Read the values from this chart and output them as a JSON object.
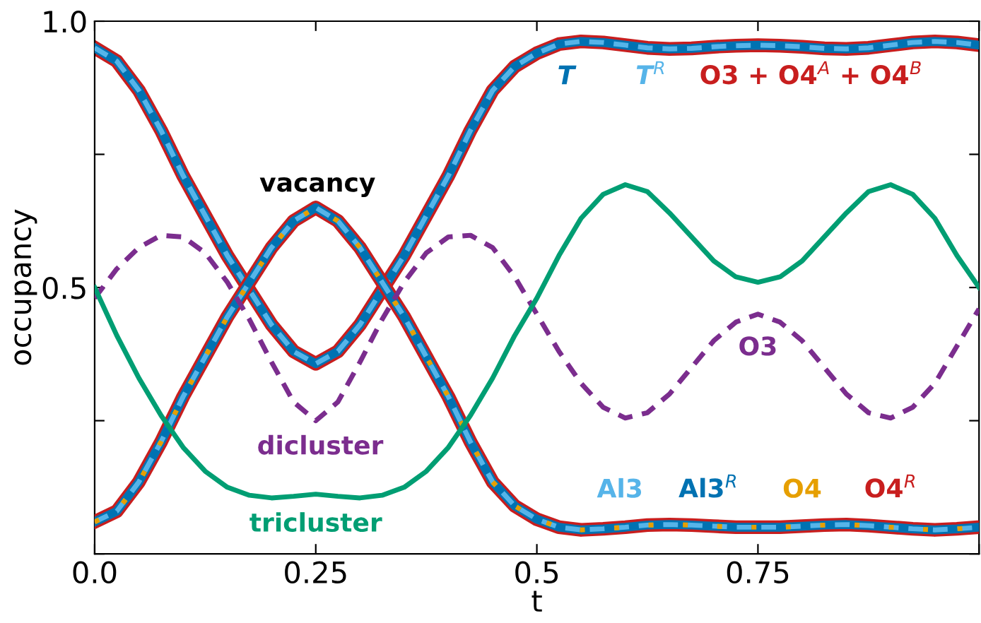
{
  "chart_data": {
    "type": "line",
    "xlabel": "t",
    "ylabel": "occupancy",
    "xlim": [
      0,
      1
    ],
    "ylim": [
      0,
      1
    ],
    "xticks": [
      {
        "value": 0,
        "label": "0.0"
      },
      0.25,
      0.5,
      0.75,
      {
        "value": 1,
        "label": null
      }
    ],
    "yticks": [
      {
        "value": 0,
        "label": null
      },
      {
        "value": 0.25,
        "label": null
      },
      0.5,
      {
        "value": 0.75,
        "label": null
      },
      {
        "value": 1,
        "label": "1.0"
      }
    ],
    "grid": false,
    "legend": false,
    "marker": "none",
    "x": [
      0,
      0.025,
      0.05,
      0.075,
      0.1,
      0.125,
      0.15,
      0.175,
      0.2,
      0.225,
      0.25,
      0.275,
      0.3,
      0.325,
      0.35,
      0.375,
      0.4,
      0.425,
      0.45,
      0.475,
      0.5,
      0.525,
      0.55,
      0.575,
      0.6,
      0.625,
      0.65,
      0.675,
      0.7,
      0.725,
      0.75,
      0.775,
      0.8,
      0.825,
      0.85,
      0.875,
      0.9,
      0.925,
      0.95,
      0.975,
      1.0
    ],
    "series": [
      {
        "name": "O3 + O4$^{A}$ + O4$^{B}$",
        "color": "#c81e1e",
        "line_style": "solid",
        "values": [
          0.95,
          0.925,
          0.87,
          0.795,
          0.71,
          0.635,
          0.56,
          0.495,
          0.43,
          0.38,
          0.357,
          0.38,
          0.43,
          0.495,
          0.56,
          0.635,
          0.71,
          0.795,
          0.87,
          0.915,
          0.94,
          0.957,
          0.962,
          0.96,
          0.955,
          0.95,
          0.948,
          0.949,
          0.952,
          0.954,
          0.955,
          0.954,
          0.952,
          0.949,
          0.948,
          0.95,
          0.955,
          0.96,
          0.962,
          0.96,
          0.955
        ]
      },
      {
        "name": "T",
        "color": "#0072b2",
        "line_style": "solid",
        "values": [
          0.95,
          0.925,
          0.87,
          0.795,
          0.71,
          0.635,
          0.56,
          0.495,
          0.43,
          0.38,
          0.357,
          0.38,
          0.43,
          0.495,
          0.56,
          0.635,
          0.71,
          0.795,
          0.87,
          0.915,
          0.94,
          0.957,
          0.962,
          0.96,
          0.955,
          0.95,
          0.948,
          0.949,
          0.952,
          0.954,
          0.955,
          0.954,
          0.952,
          0.949,
          0.948,
          0.95,
          0.955,
          0.96,
          0.962,
          0.96,
          0.955
        ]
      },
      {
        "name": "T$^{R}$",
        "color": "#56b4e9",
        "line_style": "dashed",
        "values": [
          0.95,
          0.925,
          0.87,
          0.795,
          0.71,
          0.635,
          0.56,
          0.495,
          0.43,
          0.38,
          0.357,
          0.38,
          0.43,
          0.495,
          0.56,
          0.635,
          0.71,
          0.795,
          0.87,
          0.915,
          0.94,
          0.957,
          0.962,
          0.96,
          0.955,
          0.95,
          0.948,
          0.949,
          0.952,
          0.954,
          0.955,
          0.954,
          0.952,
          0.949,
          0.948,
          0.95,
          0.955,
          0.96,
          0.962,
          0.96,
          0.955
        ]
      },
      {
        "name": "O4$^{R}$",
        "color": "#c81e1e",
        "line_style": "solid",
        "values": [
          0.06,
          0.08,
          0.135,
          0.21,
          0.295,
          0.37,
          0.445,
          0.51,
          0.575,
          0.625,
          0.65,
          0.625,
          0.575,
          0.51,
          0.445,
          0.37,
          0.295,
          0.21,
          0.135,
          0.09,
          0.065,
          0.05,
          0.045,
          0.047,
          0.05,
          0.054,
          0.055,
          0.054,
          0.052,
          0.05,
          0.05,
          0.05,
          0.052,
          0.054,
          0.055,
          0.053,
          0.05,
          0.047,
          0.045,
          0.047,
          0.05
        ]
      },
      {
        "name": "Al3$^{R}$",
        "color": "#0072b2",
        "line_style": "solid",
        "values": [
          0.06,
          0.08,
          0.135,
          0.21,
          0.295,
          0.37,
          0.445,
          0.51,
          0.575,
          0.625,
          0.65,
          0.625,
          0.575,
          0.51,
          0.445,
          0.37,
          0.295,
          0.21,
          0.135,
          0.09,
          0.065,
          0.05,
          0.045,
          0.047,
          0.05,
          0.054,
          0.055,
          0.054,
          0.052,
          0.05,
          0.05,
          0.05,
          0.052,
          0.054,
          0.055,
          0.053,
          0.05,
          0.047,
          0.045,
          0.047,
          0.05
        ]
      },
      {
        "name": "Al3",
        "color": "#56b4e9",
        "line_style": "dashed",
        "values": [
          0.06,
          0.08,
          0.135,
          0.21,
          0.295,
          0.37,
          0.445,
          0.51,
          0.575,
          0.625,
          0.65,
          0.625,
          0.575,
          0.51,
          0.445,
          0.37,
          0.295,
          0.21,
          0.135,
          0.09,
          0.065,
          0.05,
          0.045,
          0.047,
          0.05,
          0.054,
          0.055,
          0.054,
          0.052,
          0.05,
          0.05,
          0.05,
          0.052,
          0.054,
          0.055,
          0.053,
          0.05,
          0.047,
          0.045,
          0.047,
          0.05
        ]
      },
      {
        "name": "O4",
        "color": "#e69f00",
        "line_style": "dotted",
        "values": [
          0.06,
          0.08,
          0.135,
          0.21,
          0.295,
          0.37,
          0.445,
          0.51,
          0.575,
          0.625,
          0.65,
          0.625,
          0.575,
          0.51,
          0.445,
          0.37,
          0.295,
          0.21,
          0.135,
          0.09,
          0.065,
          0.05,
          0.045,
          0.047,
          0.05,
          0.054,
          0.055,
          0.054,
          0.052,
          0.05,
          0.05,
          0.05,
          0.052,
          0.054,
          0.055,
          0.053,
          0.05,
          0.047,
          0.045,
          0.047,
          0.05
        ]
      },
      {
        "name": "dicluster",
        "color": "#7b2d8e",
        "line_style": "dashed",
        "values": [
          0.48,
          0.535,
          0.575,
          0.598,
          0.595,
          0.565,
          0.51,
          0.44,
          0.36,
          0.285,
          0.25,
          0.285,
          0.36,
          0.44,
          0.51,
          0.565,
          0.595,
          0.598,
          0.575,
          0.52,
          0.45,
          0.38,
          0.32,
          0.275,
          0.255,
          0.265,
          0.3,
          0.35,
          0.4,
          0.435,
          0.45,
          0.435,
          0.4,
          0.35,
          0.3,
          0.265,
          0.255,
          0.275,
          0.32,
          0.39,
          0.46
        ]
      },
      {
        "name": "tricluster",
        "color": "#009e73",
        "line_style": "solid",
        "values": [
          0.5,
          0.41,
          0.33,
          0.26,
          0.2,
          0.155,
          0.125,
          0.11,
          0.105,
          0.108,
          0.112,
          0.108,
          0.105,
          0.11,
          0.125,
          0.155,
          0.2,
          0.26,
          0.33,
          0.41,
          0.48,
          0.56,
          0.63,
          0.675,
          0.693,
          0.68,
          0.64,
          0.595,
          0.55,
          0.52,
          0.51,
          0.52,
          0.55,
          0.595,
          0.64,
          0.68,
          0.693,
          0.675,
          0.63,
          0.56,
          0.5
        ]
      }
    ],
    "annotations": [
      "vacancy",
      "O3"
    ]
  }
}
